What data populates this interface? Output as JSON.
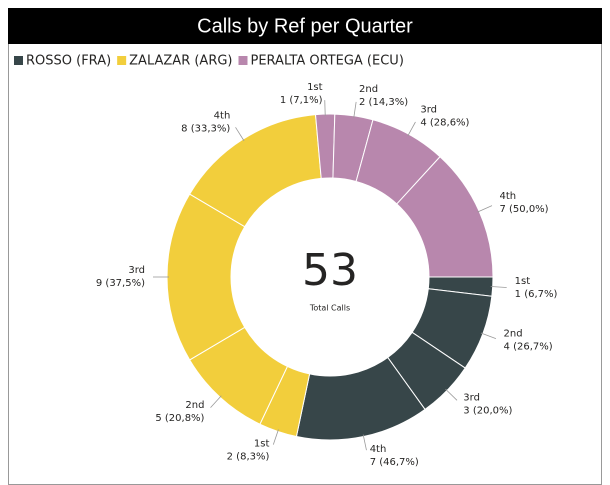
{
  "chart_data": {
    "type": "donut",
    "title": "Calls by Ref per Quarter",
    "categories": [
      "1st",
      "2nd",
      "3rd",
      "4th"
    ],
    "series": [
      {
        "name": "ROSSO (FRA)",
        "color": "#374649",
        "values": [
          1,
          4,
          3,
          7
        ],
        "value_labels": [
          "1 (6,7%)",
          "4 (26,7%)",
          "3 (20,0%)",
          "7 (46,7%)"
        ]
      },
      {
        "name": "ZALAZAR (ARG)",
        "color": "#F2CE3C",
        "values": [
          2,
          5,
          9,
          8
        ],
        "value_labels": [
          "2 (8,3%)",
          "5 (20,8%)",
          "9 (37,5%)",
          "8 (33,3%)"
        ]
      },
      {
        "name": "PERALTA ORTEGA (ECU)",
        "color": "#B887AD",
        "values": [
          1,
          2,
          4,
          7
        ],
        "value_labels": [
          "1 (7,1%)",
          "2 (14,3%)",
          "4 (28,6%)",
          "7 (50,0%)"
        ]
      }
    ],
    "total": 53,
    "total_label": "Total Calls"
  }
}
